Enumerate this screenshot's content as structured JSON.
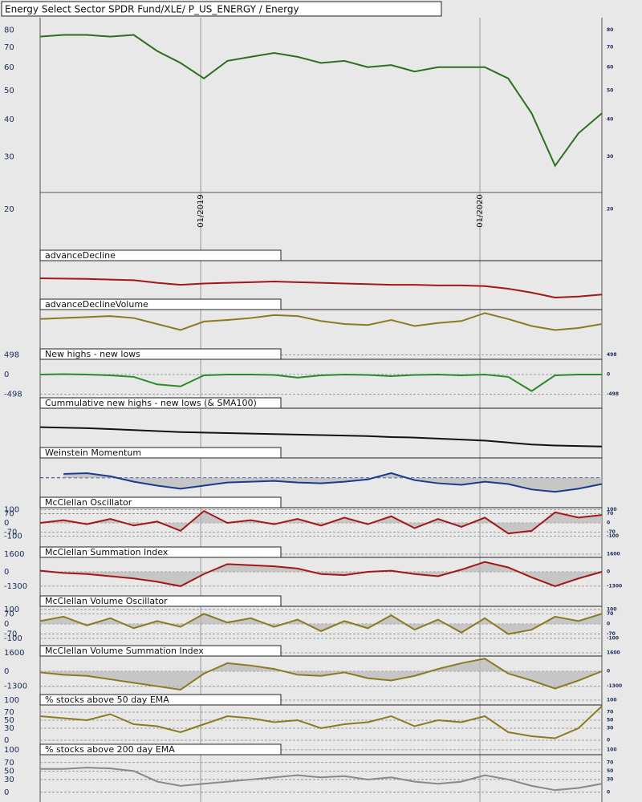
{
  "chart_data": [
    {
      "type": "line",
      "title": "Energy Select Sector SPDR Fund/XLE/ P_US_ENERGY / Energy",
      "color": "#2e6e1e",
      "log_scale": true,
      "values": [
        76,
        77,
        77,
        76,
        77,
        68,
        62,
        55,
        63,
        65,
        67,
        65,
        62,
        63,
        60,
        61,
        58,
        60,
        60,
        60,
        55,
        42,
        28,
        36,
        42
      ],
      "xlim": [
        0,
        24
      ],
      "xticks": [
        {
          "value": 6.86,
          "label": "01/2019"
        },
        {
          "value": 18.79,
          "label": "01/2020"
        }
      ],
      "ylim": [
        15.7,
        88
      ],
      "yticks": [
        20,
        30,
        40,
        50,
        60,
        70,
        80
      ]
    },
    {
      "type": "line",
      "title": "advanceDecline",
      "color": "#a01818",
      "values": [
        64,
        63,
        62,
        60,
        58,
        50,
        44,
        48,
        50,
        52,
        54,
        52,
        50,
        48,
        46,
        44,
        44,
        42,
        42,
        40,
        32,
        20,
        5,
        8,
        14
      ],
      "ylim": [
        0,
        150
      ]
    },
    {
      "type": "line",
      "title": "advanceDeclineVolume",
      "color": "#8a7a20",
      "values": [
        60,
        62,
        64,
        66,
        62,
        50,
        38,
        55,
        58,
        62,
        68,
        66,
        56,
        50,
        48,
        58,
        46,
        52,
        56,
        72,
        60,
        46,
        38,
        42,
        50
      ],
      "ylim": [
        0,
        100
      ]
    },
    {
      "type": "line",
      "title": "New highs - new lows",
      "color": "#2a8a2a",
      "values": [
        0,
        10,
        0,
        -20,
        -60,
        -250,
        -300,
        -20,
        0,
        0,
        -10,
        -80,
        -20,
        0,
        -10,
        -40,
        -10,
        0,
        -20,
        0,
        -60,
        -420,
        -20,
        0,
        0
      ],
      "ylim": [
        -590,
        650
      ],
      "yticks": [
        498,
        0,
        -498
      ],
      "grid": true
    },
    {
      "type": "line",
      "title": "Cummulative new highs - new lows (& SMA100)",
      "color": "#111111",
      "values": [
        41,
        40,
        39,
        37,
        35,
        33,
        31,
        30,
        29,
        28,
        27,
        26,
        25,
        24,
        23,
        21,
        20,
        18,
        16,
        14,
        10,
        6,
        4,
        3,
        2
      ],
      "ylim": [
        0,
        100
      ]
    },
    {
      "type": "line",
      "title": "Weinstein Momentum",
      "color": "#1a3a8a",
      "fill": true,
      "zero_line": true,
      "values": [
        null,
        5,
        6,
        2,
        -5,
        -10,
        -14,
        -10,
        -6,
        -5,
        -4,
        -6,
        -7,
        -5,
        -2,
        6,
        -3,
        -7,
        -9,
        -5,
        -8,
        -15,
        -18,
        -14,
        -8
      ],
      "ylim": [
        -25,
        39
      ]
    },
    {
      "type": "line",
      "title": "McClellan Oscillator",
      "color": "#a01818",
      "fill": true,
      "grid": true,
      "values": [
        0,
        20,
        -10,
        30,
        -20,
        10,
        -60,
        90,
        0,
        20,
        -10,
        30,
        -20,
        40,
        -10,
        50,
        -40,
        30,
        -30,
        40,
        -80,
        -60,
        80,
        40,
        60
      ],
      "ylim": [
        -182,
        194
      ],
      "yticks": [
        100,
        70,
        0,
        -70,
        -100
      ]
    },
    {
      "type": "line",
      "title": "McClellan Summation Index",
      "color": "#a01818",
      "fill": true,
      "grid": true,
      "values": [
        100,
        -100,
        -200,
        -400,
        -600,
        -900,
        -1300,
        -200,
        700,
        600,
        500,
        300,
        -200,
        -300,
        0,
        100,
        -200,
        -400,
        200,
        900,
        400,
        -500,
        -1300,
        -600,
        0
      ],
      "ylim": [
        -2180,
        2255
      ],
      "yticks": [
        1600,
        0,
        -1300
      ]
    },
    {
      "type": "line",
      "title": "McClellan Volume Oscillator",
      "color": "#8a7a20",
      "fill": true,
      "grid": true,
      "values": [
        20,
        50,
        -10,
        40,
        -30,
        20,
        -20,
        70,
        10,
        40,
        -20,
        30,
        -50,
        20,
        -30,
        60,
        -40,
        30,
        -60,
        40,
        -70,
        -40,
        50,
        20,
        70
      ],
      "ylim": [
        -150,
        194
      ],
      "yticks": [
        100,
        70,
        0,
        -70,
        -100
      ]
    },
    {
      "type": "line",
      "title": "McClellan Volume Summation Index",
      "color": "#8a7a20",
      "fill": true,
      "grid": true,
      "values": [
        -100,
        -300,
        -400,
        -700,
        -1000,
        -1300,
        -1600,
        -200,
        700,
        500,
        200,
        -300,
        -400,
        -100,
        -600,
        -800,
        -400,
        200,
        700,
        1100,
        -200,
        -800,
        -1500,
        -800,
        0
      ],
      "ylim": [
        -2017,
        2226
      ],
      "yticks": [
        1600,
        0,
        -1300
      ]
    },
    {
      "type": "line",
      "title": "% stocks above 50 day EMA",
      "color": "#8a7a20",
      "grid": true,
      "values": [
        60,
        55,
        50,
        65,
        40,
        35,
        20,
        40,
        60,
        55,
        45,
        50,
        30,
        40,
        45,
        60,
        35,
        50,
        45,
        60,
        20,
        10,
        5,
        30,
        85
      ],
      "ylim": [
        -10,
        114
      ],
      "yticks": [
        100,
        70,
        50,
        30,
        0
      ]
    },
    {
      "type": "line",
      "title": "% stocks above 200 day EMA",
      "color": "#888888",
      "grid": true,
      "values": [
        55,
        55,
        58,
        56,
        50,
        25,
        15,
        20,
        25,
        30,
        35,
        40,
        35,
        38,
        30,
        35,
        25,
        20,
        25,
        40,
        30,
        15,
        5,
        10,
        20
      ],
      "ylim": [
        -23,
        113
      ],
      "yticks": [
        100,
        70,
        50,
        30,
        0
      ]
    }
  ]
}
